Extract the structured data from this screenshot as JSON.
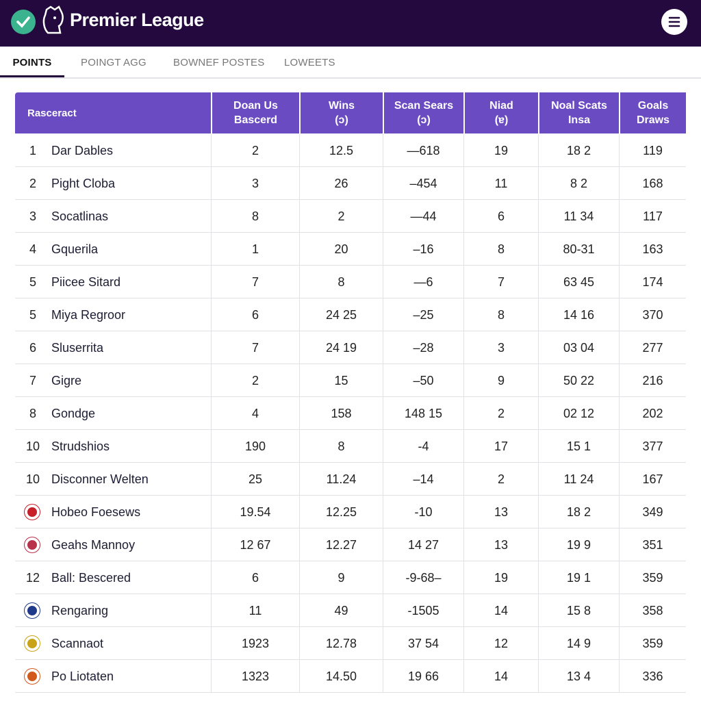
{
  "header": {
    "title": "Premier League"
  },
  "tabs": {
    "items": [
      "Points",
      "Poingt Agg",
      "Bownef Postes",
      "Loweets"
    ],
    "active": 0
  },
  "table": {
    "columns": [
      [
        "Rasceract"
      ],
      [
        "Doan Us",
        "Bascerd"
      ],
      [
        "Wins",
        "(ɔ)"
      ],
      [
        "Scan Sears",
        "(ɔ)"
      ],
      [
        "Niad",
        "(ɐ)"
      ],
      [
        "Noal Scats",
        "Insa"
      ],
      [
        "Goals",
        "Draws"
      ]
    ],
    "rows": [
      {
        "rank": "1",
        "team": "Dar Dables",
        "cells": [
          "2",
          "12.5",
          "—618",
          "19",
          "18 2",
          "119"
        ]
      },
      {
        "rank": "2",
        "team": "Pight Cloba",
        "cells": [
          "3",
          "26",
          "–454",
          "11",
          "8 2",
          "168"
        ]
      },
      {
        "rank": "3",
        "team": "Socatlinas",
        "cells": [
          "8",
          "2",
          "—44",
          "6",
          "11 34",
          "117"
        ]
      },
      {
        "rank": "4",
        "team": "Gquerila",
        "cells": [
          "1",
          "20",
          "–16",
          "8",
          "80-31",
          "163"
        ]
      },
      {
        "rank": "5",
        "team": "Piicee Sitard",
        "cells": [
          "7",
          "8",
          "—6",
          "7",
          "63 45",
          "174"
        ]
      },
      {
        "rank": "5",
        "team": "Miya Regroor",
        "cells": [
          "6",
          "24 25",
          "–25",
          "8",
          "14 16",
          "370"
        ]
      },
      {
        "rank": "6",
        "team": "Sluserrita",
        "cells": [
          "7",
          "24 19",
          "–28",
          "3",
          "03 04",
          "277"
        ]
      },
      {
        "rank": "7",
        "team": "Gigre",
        "cells": [
          "2",
          "15",
          "–50",
          "9",
          "50 22",
          "216"
        ]
      },
      {
        "rank": "8",
        "team": "Gondge",
        "cells": [
          "4",
          "158",
          "148 15",
          "2",
          "02 12",
          "202"
        ]
      },
      {
        "rank": "10",
        "team": "Strudshios",
        "cells": [
          "190",
          "8",
          "-4",
          "17",
          "15 1",
          "377"
        ]
      },
      {
        "rank": "10",
        "team": "Disconner Welten",
        "cells": [
          "25",
          "11.24",
          "–14",
          "2",
          "11 24",
          "167"
        ]
      },
      {
        "badge": "#c8202a",
        "team": "Hobeo Foesews",
        "cells": [
          "19.54",
          "12.25",
          "-10",
          "13",
          "18 2",
          "349"
        ]
      },
      {
        "badge": "#b8324a",
        "team": "Geahs Mannoy",
        "cells": [
          "12 67",
          "12.27",
          "14 27",
          "13",
          "19 9",
          "351"
        ]
      },
      {
        "rank": "12",
        "team": "Ball: Bescered",
        "cells": [
          "6",
          "9",
          "-9-68–",
          "19",
          "19 1",
          "359"
        ]
      },
      {
        "badge": "#1f3a8a",
        "team": "Rengaring",
        "cells": [
          "11",
          "49",
          "-1505",
          "14",
          "15 8",
          "358"
        ]
      },
      {
        "badge": "#c9a317",
        "team": "Scannaot",
        "cells": [
          "1923",
          "12.78",
          "37 54",
          "12",
          "14 9",
          "359"
        ]
      },
      {
        "badge": "#d2591c",
        "team": "Po Liotaten",
        "cells": [
          "1323",
          "14.50",
          "19 66",
          "14",
          "13 4",
          "336"
        ]
      }
    ]
  }
}
